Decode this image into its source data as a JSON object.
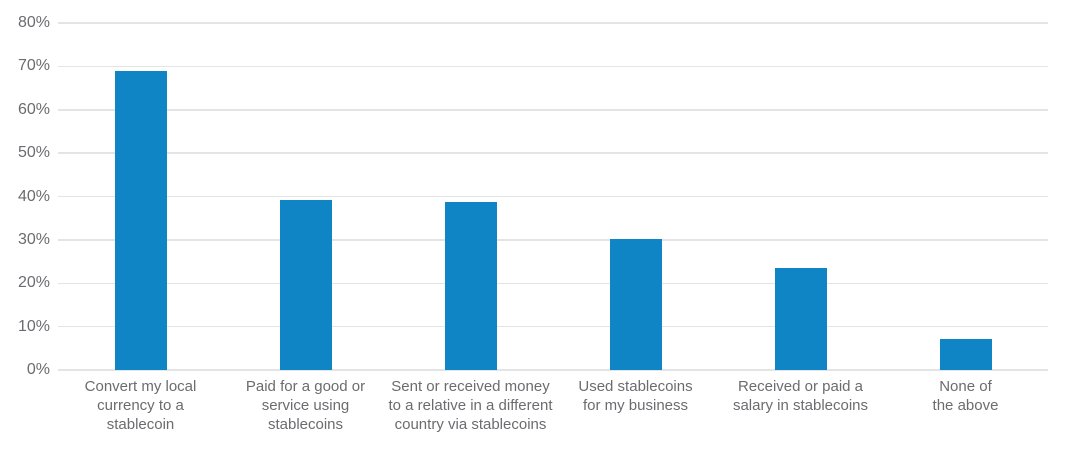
{
  "page": {
    "background": "#ffffff"
  },
  "chart_data": {
    "type": "bar",
    "title": "",
    "xlabel": "",
    "ylabel": "",
    "categories": [
      "Convert my local\ncurrency to a\nstablecoin",
      "Paid for a good or\nservice using\nstablecoins",
      "Sent or received money\nto a relative in a different\ncountry via stablecoins",
      "Used stablecoins\nfor my business",
      "Received or paid a\nsalary in stablecoins",
      "None of\nthe above"
    ],
    "values": [
      69,
      39.3,
      38.8,
      30.1,
      23.5,
      7.2
    ],
    "ylim": [
      0,
      80
    ],
    "ytick_step": 10,
    "ytick_labels": [
      "0%",
      "10%",
      "20%",
      "30%",
      "40%",
      "50%",
      "60%",
      "70%",
      "80%"
    ],
    "grid": true,
    "legend": false,
    "bar_color": "#0f85c5",
    "gridline_color": "#e3e4e5",
    "axis_label_color": "#6b6c6f",
    "background": "#ffffff"
  }
}
